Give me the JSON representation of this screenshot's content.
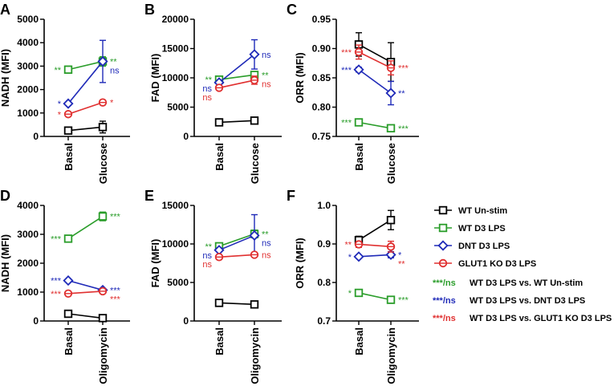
{
  "colors": {
    "WT Un-stim": "#000000",
    "WT D3 LPS": "#2a9d2a",
    "DNT D3 LPS": "#1f2ab8",
    "GLUT1 KO D3 LPS": "#e03030"
  },
  "legend": {
    "series": [
      {
        "name": "WT Un-stim",
        "marker": "square",
        "color": "#000000"
      },
      {
        "name": "WT D3 LPS",
        "marker": "square",
        "color": "#2a9d2a"
      },
      {
        "name": "DNT D3 LPS",
        "marker": "diamond",
        "color": "#1f2ab8"
      },
      {
        "name": "GLUT1 KO D3 LPS",
        "marker": "circle",
        "color": "#e03030"
      }
    ],
    "comparisons": [
      {
        "prefix": "***/ns",
        "text": "WT D3 LPS vs. WT Un-stim",
        "color": "#2a9d2a"
      },
      {
        "prefix": "***/ns",
        "text": "WT D3 LPS vs. DNT D3 LPS",
        "color": "#1f2ab8"
      },
      {
        "prefix": "***/ns",
        "text": "WT D3 LPS vs. GLUT1 KO D3 LPS",
        "color": "#e03030"
      }
    ]
  },
  "chart_data": [
    {
      "panel": "A",
      "type": "line",
      "ylabel": "NADH (MFI)",
      "categories": [
        "Basal",
        "Glucose"
      ],
      "ylim": [
        0,
        5000
      ],
      "yticks": [
        0,
        1000,
        2000,
        3000,
        4000,
        5000
      ],
      "series": [
        {
          "name": "WT Un-stim",
          "values": [
            250,
            400
          ],
          "err": [
            0,
            250
          ]
        },
        {
          "name": "WT D3 LPS",
          "values": [
            2850,
            3200
          ],
          "err": [
            150,
            200
          ]
        },
        {
          "name": "DNT D3 LPS",
          "values": [
            1400,
            3200
          ],
          "err": [
            0,
            900
          ]
        },
        {
          "name": "GLUT1 KO D3 LPS",
          "values": [
            950,
            1450
          ],
          "err": [
            0,
            100
          ]
        }
      ],
      "annotations": [
        {
          "text": "**",
          "series": "WT D3 LPS",
          "side": "left",
          "at": 0
        },
        {
          "text": "**",
          "series": "WT D3 LPS",
          "side": "right",
          "at": 1
        },
        {
          "text": "*",
          "series": "DNT D3 LPS",
          "side": "left",
          "at": 0
        },
        {
          "text": "ns",
          "series": "DNT D3 LPS",
          "side": "right",
          "at": 1
        },
        {
          "text": "*",
          "series": "GLUT1 KO D3 LPS",
          "side": "left",
          "at": 0
        },
        {
          "text": "*",
          "series": "GLUT1 KO D3 LPS",
          "side": "right",
          "at": 1
        }
      ]
    },
    {
      "panel": "B",
      "type": "line",
      "ylabel": "FAD (MFI)",
      "categories": [
        "Basal",
        "Glucose"
      ],
      "ylim": [
        0,
        20000
      ],
      "yticks": [
        0,
        5000,
        10000,
        15000,
        20000
      ],
      "series": [
        {
          "name": "WT Un-stim",
          "values": [
            2400,
            2700
          ],
          "err": [
            0,
            300
          ]
        },
        {
          "name": "WT D3 LPS",
          "values": [
            9700,
            10500
          ],
          "err": [
            0,
            400
          ]
        },
        {
          "name": "DNT D3 LPS",
          "values": [
            9200,
            14000
          ],
          "err": [
            0,
            2500
          ]
        },
        {
          "name": "GLUT1 KO D3 LPS",
          "values": [
            8300,
            9600
          ],
          "err": [
            0,
            700
          ]
        }
      ],
      "annotations": [
        {
          "text": "**",
          "series": "WT D3 LPS",
          "side": "left",
          "at": 0
        },
        {
          "text": "**",
          "series": "WT D3 LPS",
          "side": "right",
          "at": 1
        },
        {
          "text": "ns",
          "series": "DNT D3 LPS",
          "side": "left",
          "at": 0
        },
        {
          "text": "ns",
          "series": "DNT D3 LPS",
          "side": "right",
          "at": 1
        },
        {
          "text": "ns",
          "series": "GLUT1 KO D3 LPS",
          "side": "left",
          "at": 0
        },
        {
          "text": "ns",
          "series": "GLUT1 KO D3 LPS",
          "side": "right",
          "at": 1
        }
      ]
    },
    {
      "panel": "C",
      "type": "line",
      "ylabel": "ORR (MFI)",
      "categories": [
        "Basal",
        "Glucose"
      ],
      "ylim": [
        0.75,
        0.95
      ],
      "yticks": [
        0.75,
        0.8,
        0.85,
        0.9,
        0.95
      ],
      "decimals": 2,
      "series": [
        {
          "name": "WT Un-stim",
          "values": [
            0.907,
            0.877
          ],
          "err": [
            0.02,
            0.033
          ]
        },
        {
          "name": "WT D3 LPS",
          "values": [
            0.774,
            0.764
          ],
          "err": [
            0,
            0.003
          ]
        },
        {
          "name": "DNT D3 LPS",
          "values": [
            0.864,
            0.824
          ],
          "err": [
            0.004,
            0.02
          ]
        },
        {
          "name": "GLUT1 KO D3 LPS",
          "values": [
            0.894,
            0.867
          ],
          "err": [
            0.012,
            0.012
          ]
        }
      ],
      "annotations": [
        {
          "text": "***",
          "series": "WT D3 LPS",
          "side": "left",
          "at": 0
        },
        {
          "text": "***",
          "series": "WT D3 LPS",
          "side": "right",
          "at": 1
        },
        {
          "text": "***",
          "series": "DNT D3 LPS",
          "side": "left",
          "at": 0
        },
        {
          "text": "**",
          "series": "DNT D3 LPS",
          "side": "right",
          "at": 1
        },
        {
          "text": "***",
          "series": "GLUT1 KO D3 LPS",
          "side": "left",
          "at": 0
        },
        {
          "text": "***",
          "series": "GLUT1 KO D3 LPS",
          "side": "right",
          "at": 1
        }
      ]
    },
    {
      "panel": "D",
      "type": "line",
      "ylabel": "NADH (MFI)",
      "categories": [
        "Basal",
        "Oligomycin"
      ],
      "ylim": [
        0,
        4000
      ],
      "yticks": [
        0,
        1000,
        2000,
        3000,
        4000
      ],
      "series": [
        {
          "name": "WT Un-stim",
          "values": [
            250,
            100
          ],
          "err": [
            0,
            0
          ]
        },
        {
          "name": "WT D3 LPS",
          "values": [
            2850,
            3620
          ],
          "err": [
            0,
            150
          ]
        },
        {
          "name": "DNT D3 LPS",
          "values": [
            1400,
            1070
          ],
          "err": [
            0,
            0
          ]
        },
        {
          "name": "GLUT1 KO D3 LPS",
          "values": [
            950,
            1030
          ],
          "err": [
            0,
            0
          ]
        }
      ],
      "annotations": [
        {
          "text": "***",
          "series": "WT D3 LPS",
          "side": "left",
          "at": 0
        },
        {
          "text": "***",
          "series": "WT D3 LPS",
          "side": "right",
          "at": 1
        },
        {
          "text": "***",
          "series": "DNT D3 LPS",
          "side": "left",
          "at": 0
        },
        {
          "text": "***",
          "series": "DNT D3 LPS",
          "side": "right",
          "at": 1
        },
        {
          "text": "***",
          "series": "GLUT1 KO D3 LPS",
          "side": "left",
          "at": 0
        },
        {
          "text": "***",
          "series": "GLUT1 KO D3 LPS",
          "side": "right",
          "at": 1
        }
      ]
    },
    {
      "panel": "E",
      "type": "line",
      "ylabel": "FAD (MFI)",
      "categories": [
        "Basal",
        "Oligomycin"
      ],
      "ylim": [
        0,
        15000
      ],
      "yticks": [
        0,
        5000,
        10000,
        15000
      ],
      "series": [
        {
          "name": "WT Un-stim",
          "values": [
            2350,
            2150
          ],
          "err": [
            0,
            0
          ]
        },
        {
          "name": "WT D3 LPS",
          "values": [
            9700,
            11300
          ],
          "err": [
            0,
            500
          ]
        },
        {
          "name": "DNT D3 LPS",
          "values": [
            9200,
            11100
          ],
          "err": [
            0,
            2700
          ]
        },
        {
          "name": "GLUT1 KO D3 LPS",
          "values": [
            8300,
            8600
          ],
          "err": [
            0,
            0
          ]
        }
      ],
      "annotations": [
        {
          "text": "**",
          "series": "WT D3 LPS",
          "side": "left",
          "at": 0
        },
        {
          "text": "**",
          "series": "WT D3 LPS",
          "side": "right",
          "at": 1
        },
        {
          "text": "ns",
          "series": "DNT D3 LPS",
          "side": "left",
          "at": 0
        },
        {
          "text": "ns",
          "series": "DNT D3 LPS",
          "side": "right",
          "at": 1
        },
        {
          "text": "ns",
          "series": "GLUT1 KO D3 LPS",
          "side": "left",
          "at": 0
        },
        {
          "text": "ns",
          "series": "GLUT1 KO D3 LPS",
          "side": "right",
          "at": 1
        }
      ]
    },
    {
      "panel": "F",
      "type": "line",
      "ylabel": "ORR (MFI)",
      "categories": [
        "Basal",
        "Oligomycin"
      ],
      "ylim": [
        0.7,
        1.0
      ],
      "yticks": [
        0.7,
        0.8,
        0.9,
        1.0
      ],
      "decimals": 1,
      "series": [
        {
          "name": "WT Un-stim",
          "values": [
            0.91,
            0.962
          ],
          "err": [
            0.01,
            0.025
          ]
        },
        {
          "name": "WT D3 LPS",
          "values": [
            0.773,
            0.755
          ],
          "err": [
            0,
            0
          ]
        },
        {
          "name": "DNT D3 LPS",
          "values": [
            0.867,
            0.872
          ],
          "err": [
            0,
            0.008
          ]
        },
        {
          "name": "GLUT1 KO D3 LPS",
          "values": [
            0.899,
            0.893
          ],
          "err": [
            0.008,
            0.014
          ]
        }
      ],
      "annotations": [
        {
          "text": "*",
          "series": "WT D3 LPS",
          "side": "left",
          "at": 0
        },
        {
          "text": "***",
          "series": "WT D3 LPS",
          "side": "right",
          "at": 1
        },
        {
          "text": "*",
          "series": "DNT D3 LPS",
          "side": "left",
          "at": 0
        },
        {
          "text": "*",
          "series": "DNT D3 LPS",
          "side": "right",
          "at": 1
        },
        {
          "text": "**",
          "series": "GLUT1 KO D3 LPS",
          "side": "left",
          "at": 0
        },
        {
          "text": "**",
          "series": "GLUT1 KO D3 LPS",
          "side": "right",
          "at": 1
        }
      ]
    }
  ]
}
